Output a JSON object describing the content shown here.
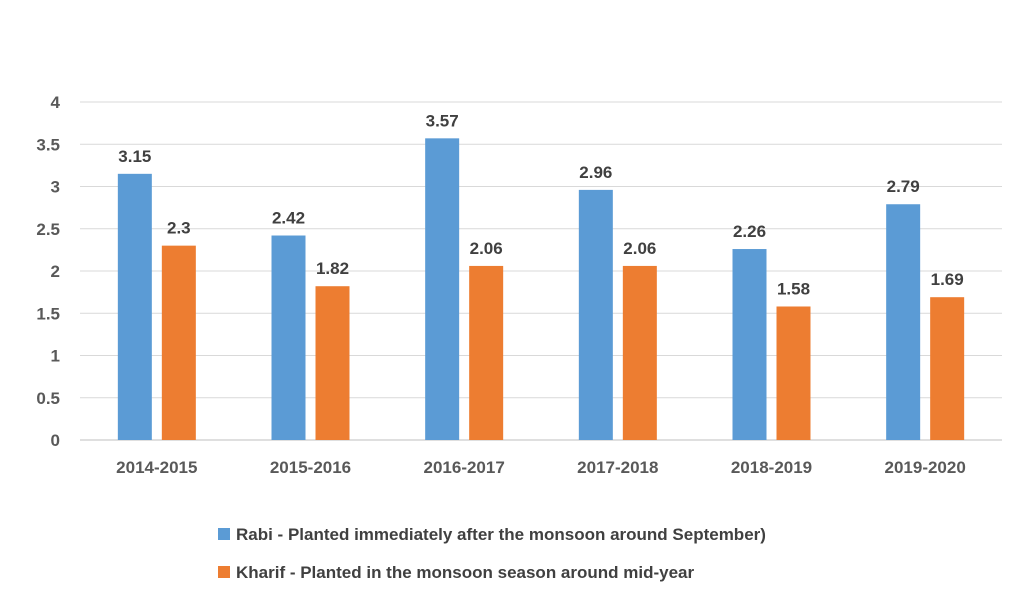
{
  "chart_data": {
    "type": "bar",
    "categories": [
      "2014-2015",
      "2015-2016",
      "2016-2017",
      "2017-2018",
      "2018-2019",
      "2019-2020"
    ],
    "series": [
      {
        "name": "Rabi - Planted immediately after the monsoon around September)",
        "values": [
          3.15,
          2.42,
          3.57,
          2.96,
          2.26,
          2.79
        ],
        "data_labels": [
          "3.15",
          "2.42",
          "3.57",
          "2.96",
          "2.26",
          "2.79"
        ],
        "color": "#5B9BD5"
      },
      {
        "name": "Kharif - Planted in the monsoon season around mid-year",
        "values": [
          2.3,
          1.82,
          2.06,
          2.06,
          1.58,
          1.69
        ],
        "data_labels": [
          "2.3",
          "1.82",
          "2.06",
          "2.06",
          "1.58",
          "1.69"
        ],
        "color": "#ED7D31"
      }
    ],
    "y_ticks": [
      "0",
      "0.5",
      "1",
      "1.5",
      "2",
      "2.5",
      "3",
      "3.5",
      "4"
    ],
    "ylim": [
      0,
      4
    ],
    "grid": true,
    "legend_position": "bottom",
    "title": "",
    "xlabel": "",
    "ylabel": ""
  }
}
